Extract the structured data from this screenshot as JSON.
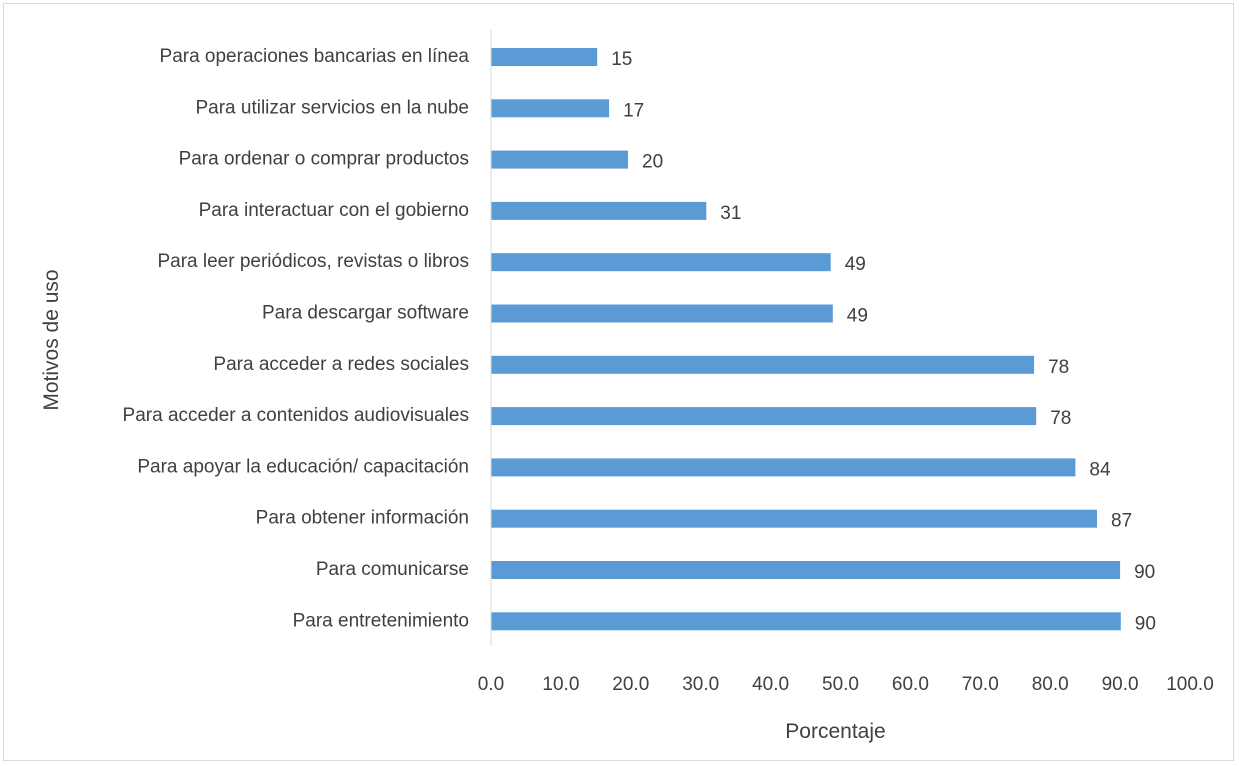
{
  "chart_data": {
    "type": "bar",
    "orientation": "horizontal",
    "title": "",
    "xlabel": "Porcentaje",
    "ylabel": "Motivos de uso",
    "xlim": [
      0,
      100
    ],
    "x_tick_values": [
      0,
      10,
      20,
      30,
      40,
      50,
      60,
      70,
      80,
      90,
      100
    ],
    "x_tick_labels": [
      "0.0",
      "10.0",
      "20.0",
      "30.0",
      "40.0",
      "50.0",
      "60.0",
      "70.0",
      "80.0",
      "90.0",
      "100.0"
    ],
    "grid": false,
    "legend": "none",
    "bar_color": "#5b9bd5",
    "categories": [
      "Para operaciones bancarias en línea",
      "Para utilizar servicios en la nube",
      "Para ordenar o comprar productos",
      "Para interactuar con el gobierno",
      "Para leer periódicos, revistas o libros",
      "Para descargar software",
      "Para acceder a redes sociales",
      "Para acceder a contenidos audiovisuales",
      "Para apoyar la educación/ capacitación",
      "Para obtener información",
      "Para comunicarse",
      "Para entretenimiento"
    ],
    "values": [
      15.2,
      16.9,
      19.6,
      30.8,
      48.6,
      48.9,
      77.7,
      78.0,
      83.6,
      86.7,
      90.0,
      90.1
    ],
    "data_labels": [
      "15",
      "17",
      "20",
      "31",
      "49",
      "49",
      "78",
      "78",
      "84",
      "87",
      "90",
      "90"
    ]
  }
}
